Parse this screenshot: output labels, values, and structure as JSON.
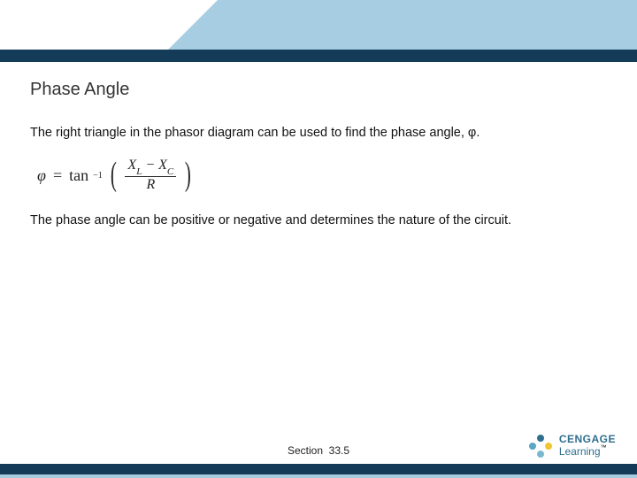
{
  "colors": {
    "header_light": "#a7cde2",
    "header_dark": "#143c58",
    "background": "#ffffff",
    "text": "#111111",
    "title_color": "#333333",
    "logo_primary": "#2f6e8e",
    "logo_accent": "#f4c430"
  },
  "title": "Phase Angle",
  "paragraph1": "The right triangle in the phasor diagram can be used to find the phase angle, φ.",
  "equation": {
    "lhs": "φ",
    "eq": "=",
    "func": "tan",
    "exponent": "−1",
    "lparen": "(",
    "rparen": ")",
    "numerator_a": "X",
    "numerator_a_sub": "L",
    "numerator_op": " − ",
    "numerator_b": "X",
    "numerator_b_sub": "C",
    "denominator": "R"
  },
  "paragraph2": "The phase angle can be positive or negative and determines the nature of the circuit.",
  "footer_section_label": "Section",
  "footer_section_number": "33.5",
  "logo": {
    "line1": "CENGAGE",
    "line2": "Learning",
    "tm": "™"
  }
}
